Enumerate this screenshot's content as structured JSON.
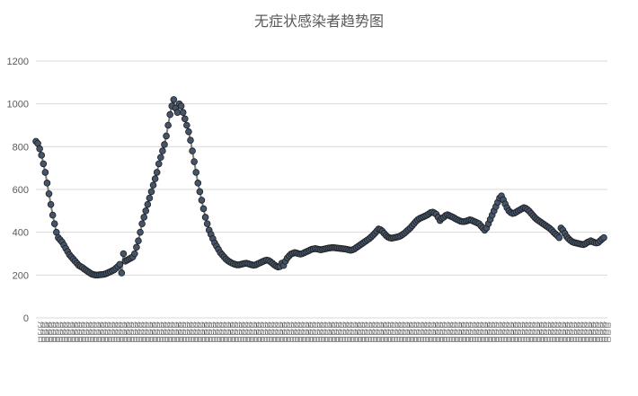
{
  "chart_data": {
    "type": "line",
    "title": "无症状感染者趋势图",
    "xlabel": "",
    "ylabel": "",
    "ylim": [
      0,
      1200
    ],
    "yticks": [
      0,
      200,
      400,
      600,
      800,
      1000,
      1200
    ],
    "grid": true,
    "legend": "none",
    "x_tick_text": "月月日",
    "n_points": 280,
    "colors": {
      "line": "#7f7f7f",
      "marker_fill": "#44546a",
      "marker_stroke": "#1f1f1f"
    },
    "series": [
      {
        "values": [
          825,
          815,
          790,
          760,
          720,
          680,
          630,
          580,
          530,
          480,
          440,
          400,
          375,
          365,
          355,
          340,
          325,
          310,
          295,
          285,
          275,
          265,
          255,
          245,
          240,
          235,
          228,
          222,
          216,
          210,
          205,
          202,
          200,
          200,
          201,
          202,
          203,
          205,
          208,
          212,
          216,
          220,
          225,
          232,
          240,
          250,
          210,
          300,
          265,
          270,
          275,
          280,
          285,
          300,
          330,
          360,
          400,
          440,
          470,
          500,
          530,
          560,
          590,
          620,
          650,
          680,
          720,
          750,
          780,
          810,
          850,
          900,
          950,
          990,
          1020,
          980,
          960,
          1000,
          990,
          960,
          930,
          900,
          870,
          830,
          780,
          730,
          680,
          630,
          590,
          550,
          510,
          470,
          440,
          410,
          390,
          370,
          350,
          335,
          320,
          305,
          295,
          285,
          275,
          268,
          262,
          257,
          253,
          250,
          248,
          248,
          250,
          252,
          254,
          255,
          253,
          250,
          248,
          246,
          248,
          252,
          256,
          260,
          264,
          268,
          270,
          268,
          262,
          255,
          248,
          242,
          238,
          240,
          255,
          245,
          265,
          280,
          290,
          298,
          302,
          305,
          303,
          300,
          298,
          300,
          304,
          308,
          312,
          316,
          320,
          322,
          324,
          322,
          320,
          318,
          320,
          322,
          324,
          326,
          327,
          328,
          328,
          327,
          326,
          325,
          324,
          323,
          322,
          320,
          318,
          316,
          318,
          322,
          328,
          334,
          340,
          346,
          352,
          358,
          364,
          370,
          378,
          386,
          395,
          405,
          415,
          412,
          405,
          395,
          385,
          378,
          374,
          372,
          374,
          376,
          378,
          380,
          384,
          390,
          396,
          404,
          412,
          420,
          430,
          440,
          450,
          458,
          464,
          468,
          472,
          476,
          480,
          486,
          492,
          494,
          490,
          484,
          470,
          455,
          465,
          470,
          478,
          482,
          478,
          474,
          470,
          465,
          460,
          456,
          452,
          450,
          450,
          452,
          455,
          458,
          456,
          452,
          448,
          444,
          440,
          430,
          420,
          410,
          420,
          440,
          460,
          480,
          500,
          520,
          540,
          560,
          570,
          552,
          532,
          514,
          500,
          492,
          488,
          490,
          495,
          500,
          505,
          510,
          515,
          512,
          506,
          498,
          488,
          478,
          468,
          460,
          454,
          448,
          442,
          436,
          430,
          424,
          418,
          410,
          400,
          392,
          384,
          375,
          420,
          410,
          395,
          380,
          370,
          362,
          356,
          352,
          350,
          348,
          346,
          344,
          342,
          346,
          352,
          356,
          360,
          356,
          352,
          350,
          352,
          360,
          368,
          375
        ]
      }
    ]
  }
}
